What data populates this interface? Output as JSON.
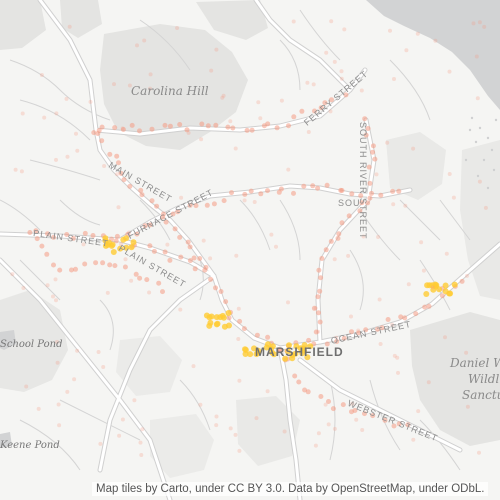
{
  "map": {
    "place_labels": {
      "carolina_hill": "Carolina Hill",
      "marshfield": "MARSHFIELD",
      "daniel_webster_line1": "Daniel W",
      "daniel_webster_line2": "Wildl",
      "daniel_webster_line3": "Sanctu"
    },
    "water_labels": {
      "school_pond": "School Pond",
      "keene_pond": "Keene Pond"
    },
    "street_labels": {
      "main_street": "MAIN STREET",
      "furnace_street": "FURNACE STREET",
      "plain_street": "PLAIN STREET",
      "plain_street_2": "PLAIN STREET",
      "ferry_street": "FERRY STREET",
      "south_river_street": "SOUTH RIVER STREET",
      "south_label": "SOU",
      "ocean_street": "OCEAN STREET",
      "webster_street": "WEBSTER STREET"
    },
    "colors": {
      "background": "#f5f5f3",
      "park": "#e4e4e2",
      "water": "#d2d3d4",
      "roads": "#ffffff",
      "heat_low": "#f49b84",
      "heat_high": "#ffcc33"
    },
    "attribution": "Map tiles by Carto, under CC BY 3.0. Data by OpenStreetMap, under ODbL."
  }
}
